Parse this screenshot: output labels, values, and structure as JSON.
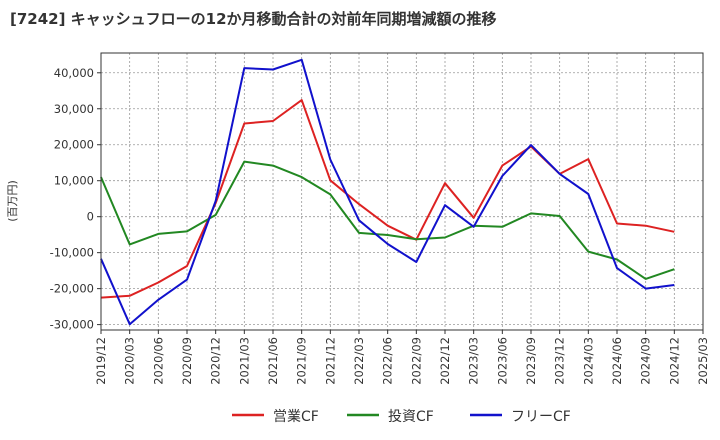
{
  "chart_data": {
    "type": "line",
    "title": "[7242]  キャッシュフローの12か月移動合計の対前年同期増減額の推移",
    "xlabel": "",
    "ylabel": "(百万円)",
    "ylim": [
      -31500,
      45500
    ],
    "yticks": [
      -30000,
      -20000,
      -10000,
      0,
      10000,
      20000,
      30000,
      40000
    ],
    "ytick_labels": [
      "-30,000",
      "-20,000",
      "-10,000",
      "0",
      "10,000",
      "20,000",
      "30,000",
      "40,000"
    ],
    "categories": [
      "2019/12",
      "2020/03",
      "2020/06",
      "2020/09",
      "2020/12",
      "2021/03",
      "2021/06",
      "2021/09",
      "2021/12",
      "2022/03",
      "2022/06",
      "2022/09",
      "2022/12",
      "2023/03",
      "2023/06",
      "2023/09",
      "2023/12",
      "2024/03",
      "2024/06",
      "2024/09",
      "2024/12",
      "2025/03"
    ],
    "legend_position": "bottom",
    "series": [
      {
        "name": "営業CF",
        "color": "#dd2222",
        "values": [
          -22500,
          -22000,
          -18300,
          -13700,
          3800,
          25900,
          26600,
          32400,
          10100,
          3500,
          -2500,
          -6400,
          9300,
          -300,
          14200,
          19500,
          11900,
          16000,
          -1900,
          -2500,
          -4200,
          null
        ]
      },
      {
        "name": "投資CF",
        "color": "#228822",
        "values": [
          11000,
          -7700,
          -4800,
          -4100,
          500,
          15300,
          14200,
          11000,
          6200,
          -4500,
          -5100,
          -6300,
          -5800,
          -2500,
          -2800,
          900,
          200,
          -9700,
          -11900,
          -17300,
          -14600,
          null
        ]
      },
      {
        "name": "フリーCF",
        "color": "#1111cc",
        "values": [
          -11700,
          -29900,
          -23100,
          -17500,
          4400,
          41300,
          40900,
          43600,
          15900,
          -1000,
          -7600,
          -12600,
          3200,
          -2800,
          11300,
          19900,
          11900,
          6300,
          -14300,
          -20000,
          -19000,
          null
        ]
      }
    ]
  }
}
